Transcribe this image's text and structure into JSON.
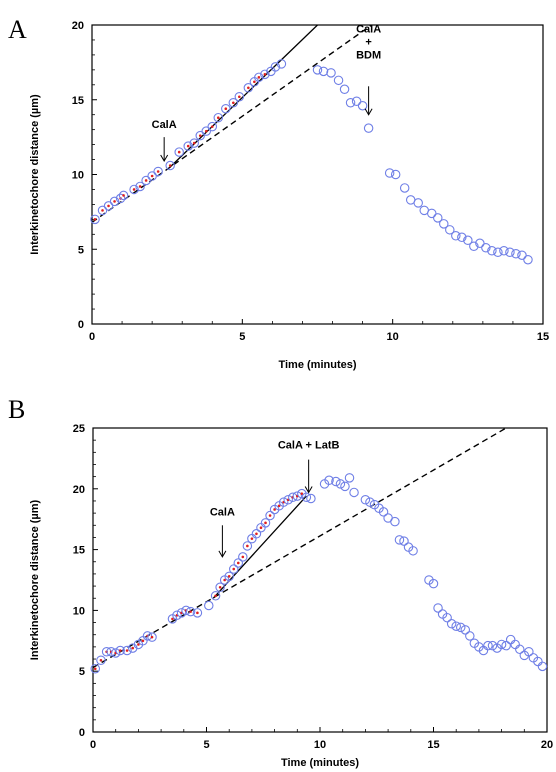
{
  "chart_data": [
    {
      "type": "scatter",
      "panel": "A",
      "xlabel": "Time (minutes)",
      "ylabel": "Interkinetochore distance (µm)",
      "xlim": [
        0,
        15
      ],
      "ylim": [
        0,
        20
      ],
      "xticks": [
        "0",
        "5",
        "10",
        "15"
      ],
      "yticks": [
        "0",
        "5",
        "10",
        "15",
        "20"
      ],
      "grid": false,
      "legend": "none",
      "marker_color": "#6f7fe6",
      "fit_point_color": "#e02020",
      "x": [
        0.1,
        0.35,
        0.55,
        0.75,
        0.95,
        1.05,
        1.4,
        1.6,
        1.8,
        2.0,
        2.2,
        2.6,
        2.9,
        3.2,
        3.4,
        3.6,
        3.8,
        4.0,
        4.2,
        4.45,
        4.7,
        4.9,
        5.2,
        5.4,
        5.55,
        5.75,
        5.95,
        6.1,
        6.3,
        7.5,
        7.7,
        7.95,
        8.2,
        8.4,
        8.6,
        8.8,
        9.0,
        9.2,
        9.9,
        10.1,
        10.4,
        10.6,
        10.85,
        11.05,
        11.3,
        11.5,
        11.7,
        11.9,
        12.1,
        12.3,
        12.5,
        12.7,
        12.9,
        13.1,
        13.3,
        13.5,
        13.7,
        13.9,
        14.1,
        14.3,
        14.5
      ],
      "y": [
        7.0,
        7.6,
        7.9,
        8.2,
        8.4,
        8.6,
        9.0,
        9.2,
        9.6,
        9.9,
        10.2,
        10.6,
        11.5,
        11.9,
        12.1,
        12.6,
        12.9,
        13.2,
        13.8,
        14.4,
        14.8,
        15.2,
        15.8,
        16.2,
        16.5,
        16.7,
        16.9,
        17.2,
        17.4,
        17.0,
        16.9,
        16.8,
        16.3,
        15.7,
        14.8,
        14.9,
        14.6,
        13.1,
        10.1,
        10.0,
        9.1,
        8.3,
        8.1,
        7.6,
        7.4,
        7.1,
        6.7,
        6.3,
        5.9,
        5.8,
        5.6,
        5.2,
        5.4,
        5.1,
        4.9,
        4.8,
        4.9,
        4.8,
        4.7,
        4.6,
        4.3
      ],
      "fit_lines": [
        {
          "style": "dashed",
          "x": [
            0,
            9.3
          ],
          "y": [
            6.8,
            20.0
          ]
        },
        {
          "style": "solid",
          "x": [
            2.6,
            7.5
          ],
          "y": [
            10.5,
            20.0
          ]
        }
      ],
      "annotations": [
        {
          "text": "CalA",
          "x": 2.4,
          "y_text": 13.1,
          "arrow_from": 12.5,
          "arrow_to": 10.9
        },
        {
          "text_lines": [
            "CalA",
            "+",
            "BDM"
          ],
          "x": 9.2,
          "y_text": 19.5,
          "arrow_from": 15.9,
          "arrow_to": 14.0
        }
      ]
    },
    {
      "type": "scatter",
      "panel": "B",
      "xlabel": "Time (minutes)",
      "ylabel": "Interkinetochore distance (µm)",
      "xlim": [
        0,
        20
      ],
      "ylim": [
        0,
        25
      ],
      "xticks": [
        "0",
        "5",
        "10",
        "15",
        "20"
      ],
      "yticks": [
        "0",
        "5",
        "10",
        "15",
        "20",
        "25"
      ],
      "grid": false,
      "legend": "none",
      "marker_color": "#6f7fe6",
      "fit_point_color": "#e02020",
      "x": [
        0.1,
        0.35,
        0.6,
        0.8,
        1.0,
        1.2,
        1.5,
        1.75,
        2.0,
        2.2,
        2.4,
        2.6,
        3.5,
        3.7,
        3.9,
        4.1,
        4.3,
        4.6,
        5.1,
        5.4,
        5.6,
        5.8,
        6.0,
        6.2,
        6.4,
        6.6,
        6.8,
        7.0,
        7.2,
        7.4,
        7.6,
        7.8,
        8.0,
        8.2,
        8.4,
        8.6,
        8.8,
        9.0,
        9.2,
        9.4,
        9.6,
        10.2,
        10.4,
        10.7,
        10.9,
        11.1,
        11.3,
        11.5,
        12.0,
        12.2,
        12.4,
        12.6,
        12.8,
        13.0,
        13.3,
        13.5,
        13.7,
        13.9,
        14.1,
        14.8,
        15.0,
        15.2,
        15.4,
        15.6,
        15.8,
        16.0,
        16.2,
        16.4,
        16.6,
        16.8,
        17.0,
        17.2,
        17.4,
        17.6,
        17.8,
        18.0,
        18.2,
        18.4,
        18.6,
        18.8,
        19.0,
        19.2,
        19.4,
        19.6,
        19.8
      ],
      "y": [
        5.2,
        5.9,
        6.6,
        6.6,
        6.5,
        6.7,
        6.7,
        6.9,
        7.2,
        7.5,
        7.9,
        7.8,
        9.3,
        9.6,
        9.8,
        10.0,
        9.9,
        9.8,
        10.4,
        11.2,
        11.9,
        12.5,
        12.8,
        13.4,
        13.9,
        14.4,
        15.3,
        15.9,
        16.3,
        16.8,
        17.2,
        17.8,
        18.3,
        18.6,
        18.9,
        19.1,
        19.3,
        19.4,
        19.6,
        19.3,
        19.2,
        20.4,
        20.7,
        20.6,
        20.4,
        20.2,
        20.9,
        19.7,
        19.1,
        18.9,
        18.7,
        18.4,
        18.1,
        17.6,
        17.3,
        15.8,
        15.7,
        15.2,
        14.9,
        12.5,
        12.2,
        10.2,
        9.7,
        9.4,
        8.9,
        8.7,
        8.6,
        8.4,
        7.9,
        7.3,
        7.0,
        6.7,
        7.1,
        7.1,
        6.9,
        7.2,
        7.1,
        7.6,
        7.2,
        6.8,
        6.3,
        6.6,
        6.1,
        5.8,
        5.4
      ],
      "fit_lines": [
        {
          "style": "dashed",
          "x": [
            0,
            18.2
          ],
          "y": [
            5.3,
            25.0
          ]
        },
        {
          "style": "solid",
          "x": [
            5.3,
            9.4
          ],
          "y": [
            11.0,
            19.4
          ]
        }
      ],
      "annotations": [
        {
          "text": "CalA",
          "x": 5.7,
          "y_text": 17.8,
          "arrow_from": 17.0,
          "arrow_to": 14.4
        },
        {
          "text": "CalA + LatB",
          "x": 9.5,
          "y_text": 23.3,
          "arrow_from": 22.4,
          "arrow_to": 19.7
        }
      ]
    }
  ]
}
